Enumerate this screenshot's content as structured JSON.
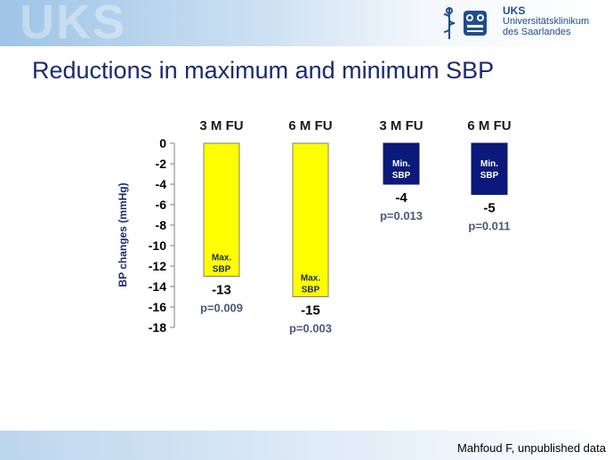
{
  "slide": {
    "title": "Reductions in maximum and minimum SBP",
    "watermark": "UKS",
    "logo": {
      "line1": "UKS",
      "line2": "Universitätsklinikum",
      "line3": "des Saarlandes"
    },
    "footer": "Mahfoud F, unpublished data",
    "colors": {
      "title": "#1a2b6b",
      "max_bar": "#ffff00",
      "min_bar": "#0b1a7a",
      "p_value": "#4a5a78"
    }
  },
  "chart_data": {
    "type": "bar",
    "title": "",
    "ylabel": "BP changes (mmHg)",
    "ylim": [
      -18,
      0
    ],
    "yticks": [
      "0",
      "-2",
      "-4",
      "-6",
      "-8",
      "-10",
      "-12",
      "-14",
      "-16",
      "-18"
    ],
    "grid": false,
    "bars": [
      {
        "category": "3 M FU",
        "value": -13,
        "value_label": "-13",
        "inner_label": [
          "Max.",
          "SBP"
        ],
        "p": "p=0.009",
        "color": "#ffff00"
      },
      {
        "category": "6 M FU",
        "value": -15,
        "value_label": "-15",
        "inner_label": [
          "Max.",
          "SBP"
        ],
        "p": "p=0.003",
        "color": "#ffff00"
      },
      {
        "category": "3 M FU",
        "value": -4,
        "value_label": "-4",
        "inner_label": [
          "Min.",
          "SBP"
        ],
        "p": "p=0.013",
        "color": "#0b1a7a"
      },
      {
        "category": "6 M FU",
        "value": -5,
        "value_label": "-5",
        "inner_label": [
          "Min.",
          "SBP"
        ],
        "p": "p=0.011",
        "color": "#0b1a7a"
      }
    ]
  }
}
